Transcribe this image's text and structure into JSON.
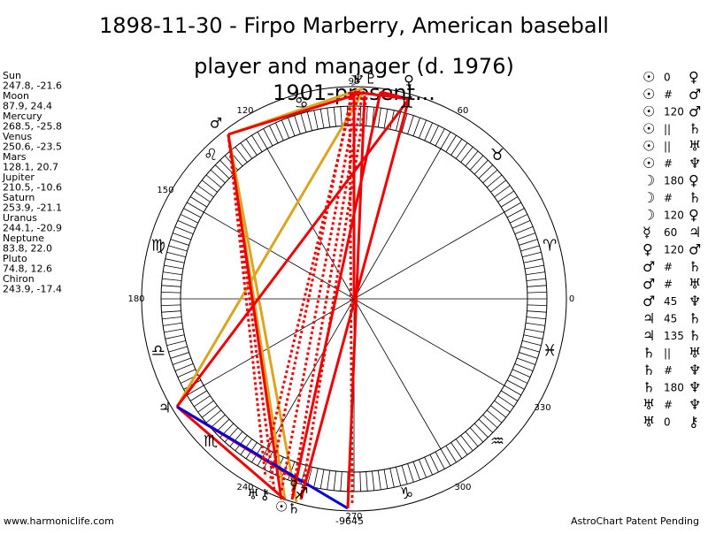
{
  "title_lines": [
    "1898-11-30 - Firpo Marberry, American baseball",
    "player and manager (d. 1976)"
  ],
  "subtitle": "1901-present...",
  "planets": [
    {
      "name": "Sun",
      "coords": "247.8, -21.6"
    },
    {
      "name": "Moon",
      "coords": "87.9, 24.4"
    },
    {
      "name": "Mercury",
      "coords": "268.5, -25.8"
    },
    {
      "name": "Venus",
      "coords": "250.6, -23.5"
    },
    {
      "name": "Mars",
      "coords": "128.1, 20.7"
    },
    {
      "name": "Jupiter",
      "coords": "210.5, -10.6"
    },
    {
      "name": "Saturn",
      "coords": "253.9, -21.1"
    },
    {
      "name": "Uranus",
      "coords": "244.1, -20.9"
    },
    {
      "name": "Neptune",
      "coords": "83.8, 22.0"
    },
    {
      "name": "Pluto",
      "coords": "74.8, 12.6"
    },
    {
      "name": "Chiron",
      "coords": "243.9, -17.4"
    }
  ],
  "aspects": [
    [
      "☉",
      "0",
      "♀"
    ],
    [
      "☉",
      "#",
      "♂"
    ],
    [
      "☉",
      "120",
      "♂"
    ],
    [
      "☉",
      "||",
      "♄"
    ],
    [
      "☉",
      "||",
      "♅"
    ],
    [
      "☉",
      "#",
      "♆"
    ],
    [
      "☽",
      "180",
      "♀"
    ],
    [
      "☽",
      "#",
      "♄"
    ],
    [
      "☽",
      "120",
      "♀"
    ],
    [
      "☿",
      "60",
      "♃"
    ],
    [
      "♀",
      "120",
      "♂"
    ],
    [
      "♂",
      "#",
      "♄"
    ],
    [
      "♂",
      "#",
      "♅"
    ],
    [
      "♂",
      "45",
      "♆"
    ],
    [
      "♃",
      "45",
      "♄"
    ],
    [
      "♃",
      "135",
      "♄"
    ],
    [
      "♄",
      "||",
      "♅"
    ],
    [
      "♄",
      "#",
      "♆"
    ],
    [
      "♄",
      "180",
      "♆"
    ],
    [
      "♅",
      "#",
      "♆"
    ],
    [
      "♅",
      "0",
      "⚷"
    ]
  ],
  "zodiac": [
    "♈",
    "♉",
    "♊",
    "♋",
    "♌",
    "♍",
    "♎",
    "♏",
    "♐",
    "♑",
    "♒",
    "♓"
  ],
  "degree_labels": [
    0,
    60,
    90,
    120,
    150,
    180,
    240,
    270,
    300,
    330
  ],
  "bottom_number": "-9645",
  "wheel_glyphs": [
    "♆♇",
    "☽",
    "♂",
    "♃",
    "♅⚷",
    "☉",
    "☿",
    "♀",
    "♄"
  ],
  "footer_left": "www.harmoniclife.com",
  "footer_right": "AstroChart Patent Pending"
}
